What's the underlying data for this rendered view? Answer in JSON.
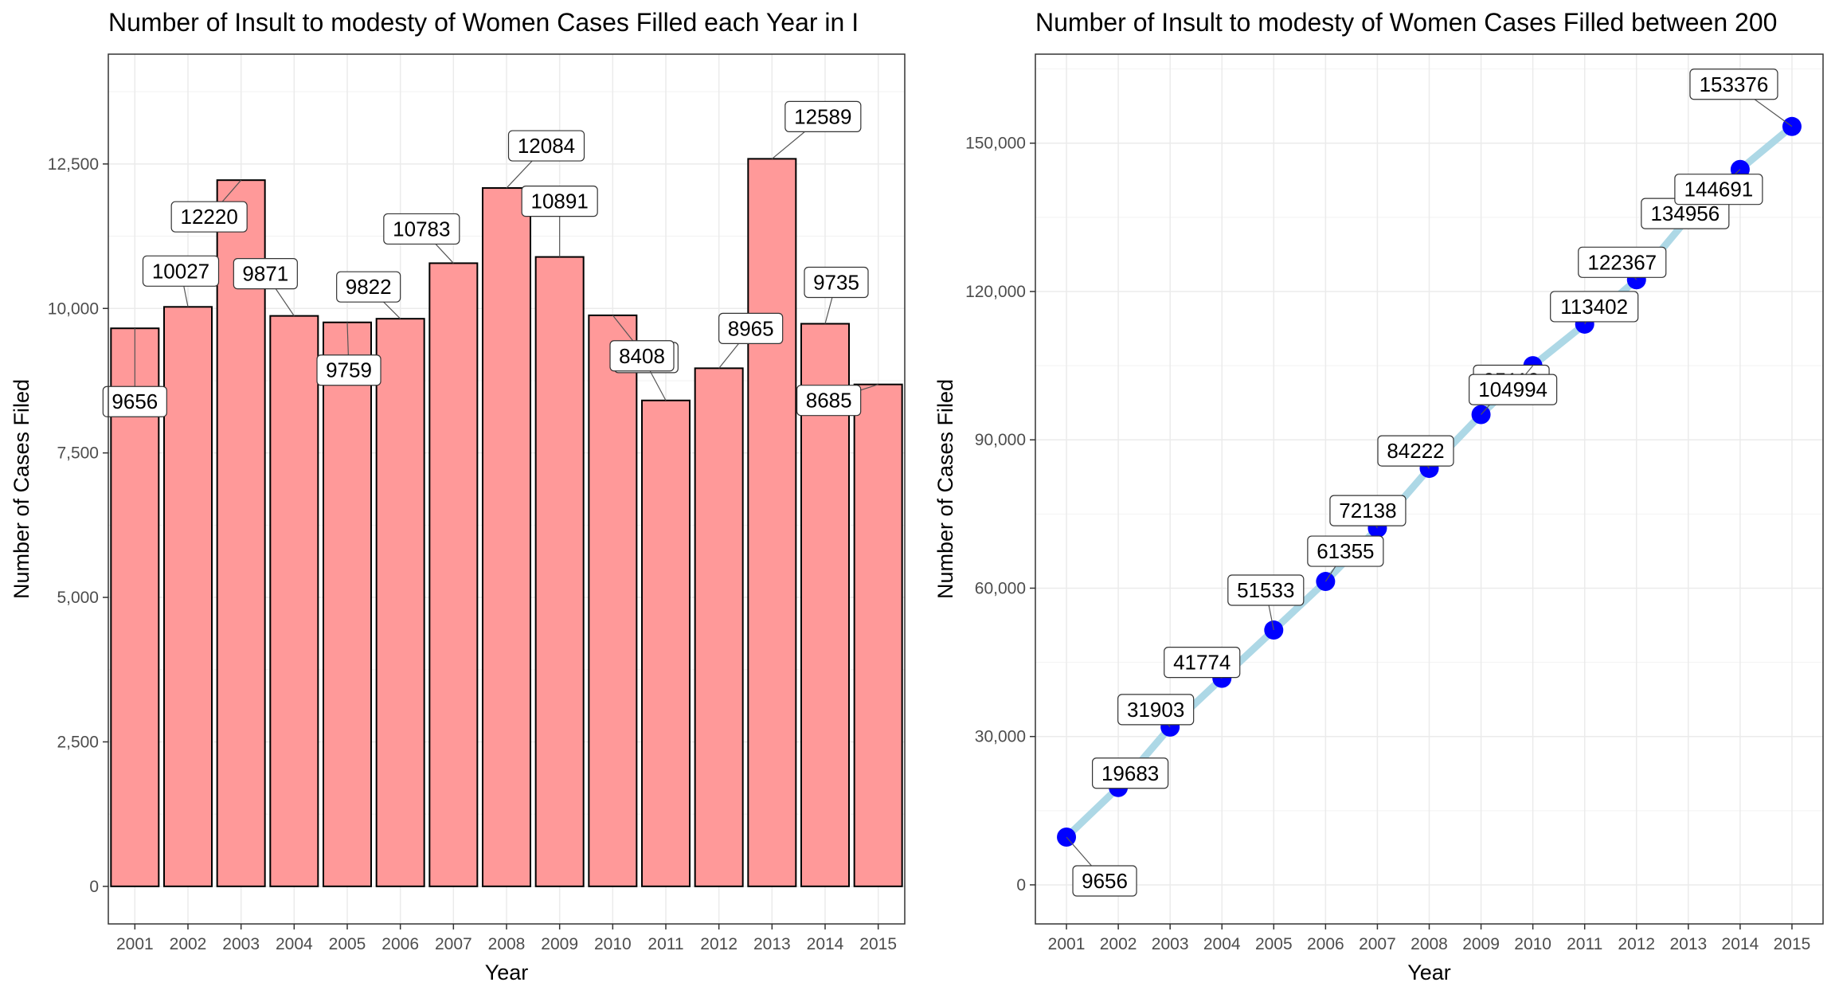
{
  "chart_data": [
    {
      "type": "bar",
      "title": "Number of Insult to modesty of Women Cases Filled each Year in I",
      "xlabel": "Year",
      "ylabel": "Number of Cases Filed",
      "categories": [
        "2001",
        "2002",
        "2003",
        "2004",
        "2005",
        "2006",
        "2007",
        "2008",
        "2009",
        "2010",
        "2011",
        "2012",
        "2013",
        "2014",
        "2015"
      ],
      "values": [
        9656,
        10027,
        12220,
        9871,
        9759,
        9822,
        10783,
        12084,
        10891,
        9881,
        8408,
        8965,
        12589,
        9735,
        8685
      ],
      "yticks": [
        0,
        2500,
        5000,
        7500,
        10000,
        12500
      ],
      "ytick_labels": [
        "0",
        "2,500",
        "5,000",
        "7,500",
        "10,000",
        "12,500"
      ],
      "ylim": [
        -650,
        14400
      ],
      "grid": true,
      "bar_fill": "#ff9999",
      "bar_stroke": "#000000"
    },
    {
      "type": "line",
      "title": "Number of Insult to modesty of Women Cases Filled between 200",
      "xlabel": "Year",
      "ylabel": "Number of Cases Filed",
      "categories": [
        "2001",
        "2002",
        "2003",
        "2004",
        "2005",
        "2006",
        "2007",
        "2008",
        "2009",
        "2010",
        "2011",
        "2012",
        "2013",
        "2014",
        "2015"
      ],
      "values": [
        9656,
        19683,
        31903,
        41774,
        51533,
        61355,
        72138,
        84222,
        95113,
        104994,
        113402,
        122367,
        134956,
        144691,
        153376
      ],
      "yticks": [
        0,
        30000,
        60000,
        90000,
        120000,
        150000
      ],
      "ytick_labels": [
        "0",
        "30,000",
        "60,000",
        "90,000",
        "120,000",
        "150,000"
      ],
      "ylim": [
        -7900,
        168000
      ],
      "grid": true,
      "line_color": "#add8e6",
      "point_color": "#0000ff"
    }
  ]
}
